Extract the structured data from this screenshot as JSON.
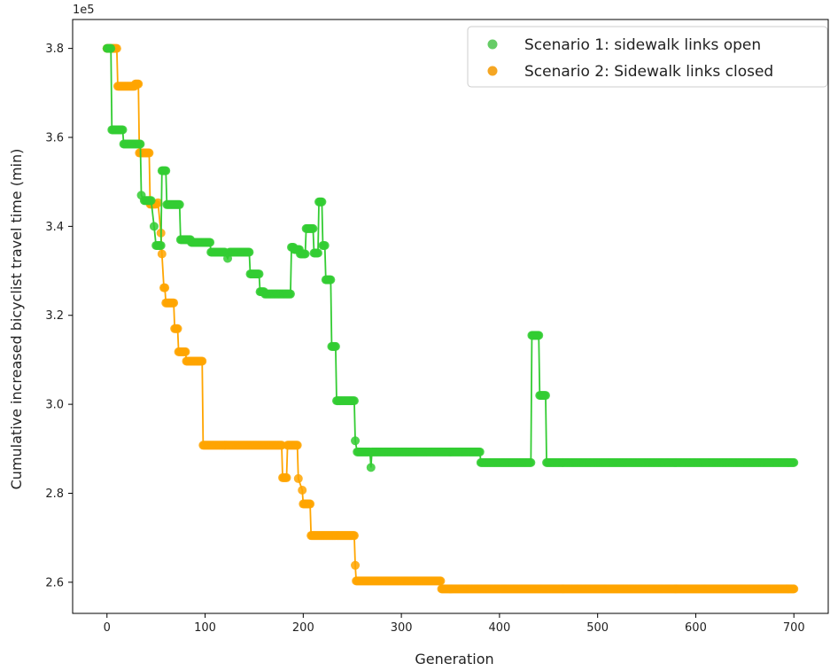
{
  "chart_data": {
    "type": "line",
    "xlabel": "Generation",
    "ylabel": "Cumulative increased bicyclist travel time (min)",
    "y_offset_text": "1e5",
    "xlim": [
      -35,
      735
    ],
    "ylim": [
      2.53,
      3.865
    ],
    "x_ticks": [
      0,
      100,
      200,
      300,
      400,
      500,
      600,
      700
    ],
    "y_ticks": [
      2.6,
      2.8,
      3.0,
      3.2,
      3.4,
      3.6,
      3.8
    ],
    "x_tick_labels": [
      "0",
      "100",
      "200",
      "300",
      "400",
      "500",
      "600",
      "700"
    ],
    "y_tick_labels": [
      "2.6",
      "2.8",
      "3.0",
      "3.2",
      "3.4",
      "3.6",
      "3.8"
    ],
    "grid": false,
    "legend_position": "top-right",
    "series": [
      {
        "name": "Scenario 1: sidewalk links open",
        "color": "#33cc33",
        "legend_color": "#66cc66",
        "points": [
          [
            0,
            3.8
          ],
          [
            4,
            3.8
          ],
          [
            5,
            3.617
          ],
          [
            10,
            3.617
          ],
          [
            16,
            3.617
          ],
          [
            17,
            3.585
          ],
          [
            25,
            3.585
          ],
          [
            34,
            3.585
          ],
          [
            35,
            3.47
          ],
          [
            38,
            3.458
          ],
          [
            45,
            3.458
          ],
          [
            48,
            3.4
          ],
          [
            50,
            3.357
          ],
          [
            55,
            3.357
          ],
          [
            56,
            3.525
          ],
          [
            60,
            3.525
          ],
          [
            61,
            3.449
          ],
          [
            65,
            3.449
          ],
          [
            74,
            3.449
          ],
          [
            75,
            3.37
          ],
          [
            85,
            3.37
          ],
          [
            86,
            3.364
          ],
          [
            95,
            3.364
          ],
          [
            105,
            3.364
          ],
          [
            106,
            3.342
          ],
          [
            120,
            3.342
          ],
          [
            123,
            3.328
          ],
          [
            125,
            3.342
          ],
          [
            145,
            3.342
          ],
          [
            146,
            3.293
          ],
          [
            155,
            3.293
          ],
          [
            156,
            3.253
          ],
          [
            160,
            3.253
          ],
          [
            161,
            3.248
          ],
          [
            170,
            3.248
          ],
          [
            175,
            3.248
          ],
          [
            187,
            3.248
          ],
          [
            188,
            3.353
          ],
          [
            190,
            3.353
          ],
          [
            191,
            3.348
          ],
          [
            196,
            3.348
          ],
          [
            197,
            3.338
          ],
          [
            202,
            3.338
          ],
          [
            203,
            3.395
          ],
          [
            210,
            3.395
          ],
          [
            211,
            3.34
          ],
          [
            215,
            3.34
          ],
          [
            216,
            3.455
          ],
          [
            219,
            3.455
          ],
          [
            220,
            3.357
          ],
          [
            222,
            3.357
          ],
          [
            223,
            3.28
          ],
          [
            228,
            3.28
          ],
          [
            229,
            3.13
          ],
          [
            233,
            3.13
          ],
          [
            234,
            3.008
          ],
          [
            242,
            3.008
          ],
          [
            252,
            3.008
          ],
          [
            253,
            2.918
          ],
          [
            255,
            2.893
          ],
          [
            268,
            2.893
          ],
          [
            269,
            2.858
          ],
          [
            270,
            2.893
          ],
          [
            300,
            2.893
          ],
          [
            350,
            2.893
          ],
          [
            380,
            2.893
          ],
          [
            381,
            2.869
          ],
          [
            400,
            2.869
          ],
          [
            432,
            2.869
          ],
          [
            433,
            3.155
          ],
          [
            440,
            3.155
          ],
          [
            441,
            3.02
          ],
          [
            447,
            3.02
          ],
          [
            448,
            2.869
          ],
          [
            500,
            2.869
          ],
          [
            600,
            2.869
          ],
          [
            700,
            2.869
          ]
        ]
      },
      {
        "name": "Scenario 2: Sidewalk links closed",
        "color": "#ffa500",
        "legend_color": "#f5a623",
        "points": [
          [
            0,
            3.8
          ],
          [
            10,
            3.8
          ],
          [
            11,
            3.715
          ],
          [
            20,
            3.715
          ],
          [
            28,
            3.715
          ],
          [
            29,
            3.72
          ],
          [
            32,
            3.72
          ],
          [
            33,
            3.565
          ],
          [
            40,
            3.565
          ],
          [
            43,
            3.565
          ],
          [
            44,
            3.45
          ],
          [
            50,
            3.45
          ],
          [
            52,
            3.453
          ],
          [
            55,
            3.385
          ],
          [
            56,
            3.338
          ],
          [
            58,
            3.262
          ],
          [
            59,
            3.262
          ],
          [
            60,
            3.228
          ],
          [
            68,
            3.228
          ],
          [
            69,
            3.17
          ],
          [
            72,
            3.17
          ],
          [
            73,
            3.118
          ],
          [
            80,
            3.118
          ],
          [
            81,
            3.097
          ],
          [
            90,
            3.097
          ],
          [
            97,
            3.097
          ],
          [
            98,
            2.908
          ],
          [
            120,
            2.908
          ],
          [
            150,
            2.908
          ],
          [
            178,
            2.908
          ],
          [
            179,
            2.835
          ],
          [
            183,
            2.835
          ],
          [
            184,
            2.908
          ],
          [
            194,
            2.908
          ],
          [
            195,
            2.833
          ],
          [
            199,
            2.807
          ],
          [
            200,
            2.776
          ],
          [
            207,
            2.776
          ],
          [
            208,
            2.705
          ],
          [
            230,
            2.705
          ],
          [
            252,
            2.705
          ],
          [
            253,
            2.638
          ],
          [
            254,
            2.603
          ],
          [
            280,
            2.603
          ],
          [
            300,
            2.603
          ],
          [
            340,
            2.603
          ],
          [
            341,
            2.585
          ],
          [
            400,
            2.585
          ],
          [
            500,
            2.585
          ],
          [
            600,
            2.585
          ],
          [
            700,
            2.585
          ]
        ]
      }
    ]
  }
}
